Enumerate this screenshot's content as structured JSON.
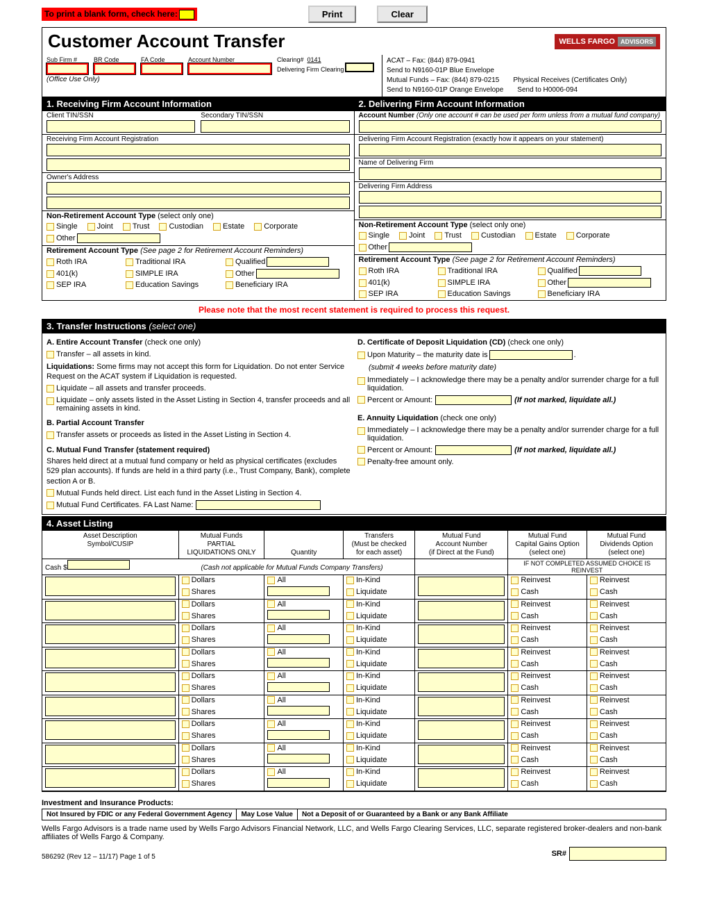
{
  "top": {
    "blank_form": "To print a blank form, check here:",
    "print": "Print",
    "clear": "Clear"
  },
  "header": {
    "title": "Customer Account Transfer",
    "logo1": "WELLS FARGO",
    "logo2": "ADVISORS"
  },
  "meta": {
    "sub_firm": "Sub Firm #",
    "br_code": "BR Code",
    "fa_code": "FA Code",
    "acct_num": "Account Number",
    "clearing_num": "Clearing#",
    "clearing_val": "0141",
    "delivering": "Delivering Firm Clearing",
    "office_use": "(Office Use Only)",
    "acat": "ACAT – Fax: (844) 879-0941",
    "send1": "Send to N9160-01P Blue Envelope",
    "mf": "Mutual Funds – Fax: (844) 879-0215",
    "send2": "Send to N9160-01P Orange Envelope",
    "phys": "Physical Receives (Certificates Only)",
    "send3": "Send to H0006-094"
  },
  "sec1": {
    "title": "1. Receiving Firm Account Information",
    "tin": "Client TIN/SSN",
    "tin2": "Secondary TIN/SSN",
    "reg": "Receiving Firm Account Registration",
    "addr": "Owner's Address",
    "nra": "Non-Retirement Account Type",
    "select_one": "(select only one)",
    "ra": "Retirement Account Type",
    "ra_note": "(See page 2 for Retirement Account Reminders)",
    "opts_nra": [
      "Single",
      "Joint",
      "Trust",
      "Custodian",
      "Estate",
      "Corporate",
      "Other"
    ],
    "opts_ra": [
      "Roth IRA",
      "Traditional IRA",
      "Qualified",
      "401(k)",
      "SIMPLE IRA",
      "Other",
      "SEP IRA",
      "Education Savings",
      "Beneficiary IRA"
    ]
  },
  "sec2": {
    "title": "2. Delivering Firm Account Information",
    "acct": "Account Number",
    "acct_note": "(Only one account # can be used per form unless from a mutual fund company)",
    "reg": "Delivering Firm Account Registration (exactly how it appears on your statement)",
    "name": "Name of Delivering Firm",
    "addr": "Delivering Firm Address"
  },
  "note": "Please note that the most recent statement is required to process this request.",
  "sec3": {
    "title": "3. Transfer Instructions",
    "select": "(select one)",
    "a_title": "A.  Entire Account Transfer",
    "a_check": "(check one only)",
    "a1": "Transfer – all assets in kind.",
    "liq_label": "Liquidations:",
    "liq_text": " Some firms may not accept this form for Liquidation. Do not enter Service Request on the ACAT system if Liquidation is requested.",
    "a2": "Liquidate – all assets and transfer proceeds.",
    "a3": "Liquidate – only assets listed in the Asset Listing in Section 4, transfer proceeds and all remaining assets in kind.",
    "b_title": "B.  Partial Account Transfer",
    "b1": "Transfer assets or proceeds as listed in the Asset Listing in Section 4.",
    "c_title": "C.  Mutual Fund Transfer (statement required)",
    "c_text": "Shares held direct at a mutual fund company or held as physical certificates (excludes 529 plan accounts).  If funds are held in a third party (i.e., Trust Company, Bank), complete section A or B.",
    "c1": "Mutual Funds held direct. List each fund in the Asset Listing in Section 4.",
    "c2": "Mutual Fund Certificates.   FA Last Name:",
    "d_title": "D.  Certificate of Deposit Liquidation (CD)",
    "d1": "Upon Maturity – the maturity date is",
    "d_sub": "(submit 4 weeks before maturity date)",
    "d2": "Immediately – I acknowledge there may be a penalty and/or surrender charge for a full liquidation.",
    "d3": "Percent or Amount:",
    "d3_note": "(If not marked, liquidate all.)",
    "e_title": "E.  Annuity Liquidation",
    "e1": "Immediately – I acknowledge there may be a penalty and/or surrender charge for a full liquidation.",
    "e2": "Percent or Amount:",
    "e3": "Penalty-free amount only."
  },
  "sec4": {
    "title": "4. Asset Listing",
    "hdr": {
      "c1": "Asset Description\nSymbol/CUSIP",
      "c2": "Mutual Funds\nPARTIAL\nLIQUIDATIONS ONLY",
      "c3": "Quantity",
      "c4": "Transfers\n(Must be checked\nfor each asset)",
      "c5": "Mutual Fund\nAccount Number\n(if Direct at the Fund)",
      "c6": "Mutual Fund\nCapital Gains Option\n(select one)",
      "c7": "Mutual Fund\nDividends Option\n(select one)"
    },
    "cash": "Cash  $",
    "cash_note": "(Cash not applicable for Mutual Funds Company Transfers)",
    "assumed": "IF NOT COMPLETED ASSUMED CHOICE IS REINVEST",
    "opts": {
      "dollars": "Dollars",
      "shares": "Shares",
      "all": "All",
      "inkind": "In-Kind",
      "liquidate": "Liquidate",
      "reinvest": "Reinvest",
      "cash": "Cash"
    },
    "rows": 9
  },
  "disc": {
    "label": "Investment and Insurance Products:",
    "d1": "Not Insured by FDIC or any Federal Government Agency",
    "d2": "May Lose Value",
    "d3": "Not a Deposit of or Guaranteed by a Bank or any Bank Affiliate",
    "text": "Wells Fargo Advisors is a trade name used by Wells Fargo Advisors Financial Network, LLC, and Wells Fargo Clearing Services, LLC, separate registered broker-dealers and non-bank affiliates of Wells Fargo & Company.",
    "sr": "SR#",
    "footer": "586292 (Rev 12 – 11/17) Page 1 of 5"
  }
}
